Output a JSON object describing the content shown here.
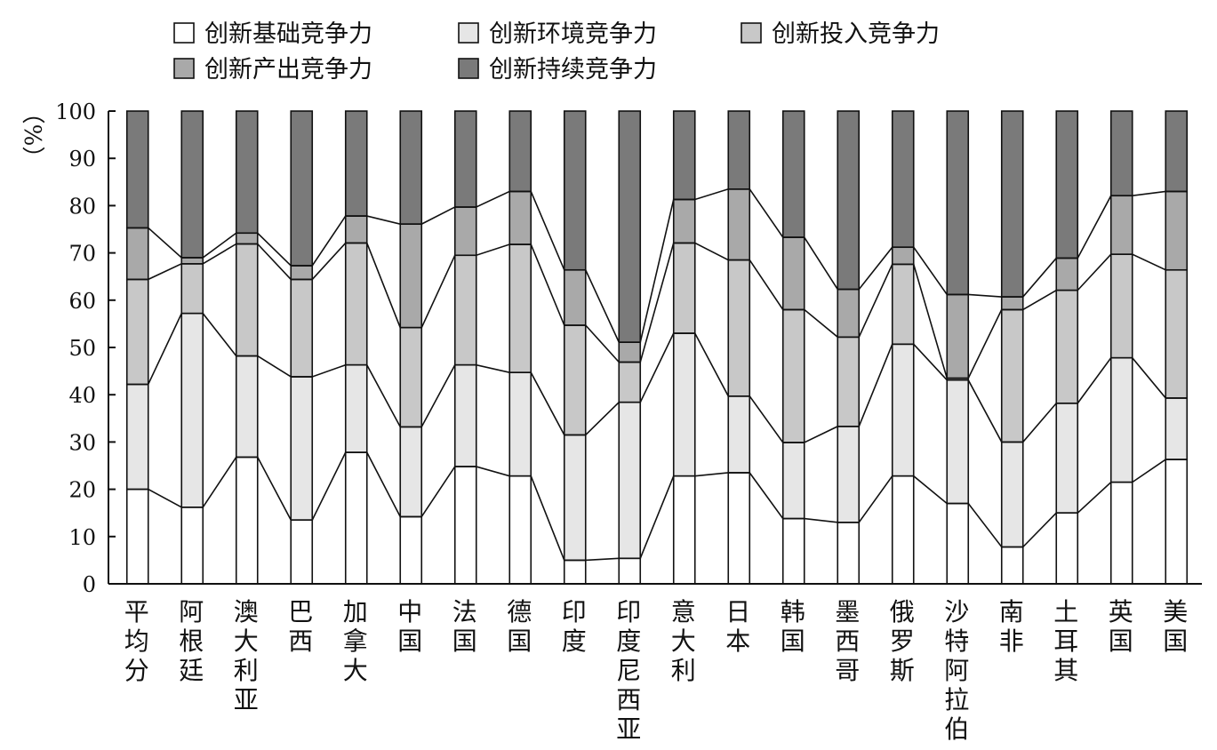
{
  "chart_data": {
    "type": "bar",
    "stacked": true,
    "ylabel": "（%）",
    "ylim": [
      0,
      100
    ],
    "yticks": [
      0,
      10,
      20,
      30,
      40,
      50,
      60,
      70,
      80,
      90,
      100
    ],
    "grid": false,
    "legend_position": "top",
    "categories": [
      "平均分",
      "阿根廷",
      "澳大利亚",
      "巴西",
      "加拿大",
      "中国",
      "法国",
      "德国",
      "印度",
      "印度尼西亚",
      "意大利",
      "日本",
      "韩国",
      "墨西哥",
      "俄罗斯",
      "沙特阿拉伯",
      "南非",
      "土耳其",
      "英国",
      "美国"
    ],
    "series": [
      {
        "name": "创新基础竞争力",
        "color": "#ffffff",
        "values": [
          20,
          16.2,
          26.8,
          13.5,
          27.8,
          14.2,
          24.8,
          22.8,
          5,
          5.4,
          22.8,
          23.5,
          13.8,
          13,
          22.8,
          17,
          7.8,
          15,
          21.5,
          26.3
        ]
      },
      {
        "name": "创新环境竞争力",
        "color": "#e6e6e6",
        "values": [
          22.2,
          41,
          21.4,
          30.3,
          18.5,
          19,
          21.5,
          21.9,
          26.5,
          33,
          30.2,
          16.2,
          16.1,
          20.3,
          27.9,
          26.1,
          22.2,
          23.2,
          26.3,
          13
        ]
      },
      {
        "name": "创新投入竞争力",
        "color": "#c8c8c8",
        "values": [
          22.2,
          10.5,
          23.7,
          20.6,
          25.8,
          21,
          23.2,
          27.1,
          23.2,
          8.5,
          19.1,
          28.8,
          28.1,
          18.9,
          16.9,
          0.4,
          28,
          23.9,
          21.9,
          27.1
        ]
      },
      {
        "name": "创新产出竞争力",
        "color": "#a9a9a9",
        "values": [
          10.9,
          1.3,
          2.3,
          2.9,
          5.7,
          21.9,
          10.2,
          11.2,
          11.7,
          4.2,
          9.2,
          15,
          15.3,
          10.1,
          3.6,
          17.7,
          2.7,
          6.8,
          12.4,
          16.6
        ]
      },
      {
        "name": "创新持续竞争力",
        "color": "#7a7a7a",
        "values": [
          24.7,
          31,
          25.8,
          32.7,
          22.2,
          23.9,
          20.3,
          17,
          33.6,
          48.9,
          18.7,
          16.5,
          26.7,
          37.7,
          28.8,
          38.8,
          39.3,
          31.1,
          17.9,
          17
        ]
      }
    ]
  }
}
